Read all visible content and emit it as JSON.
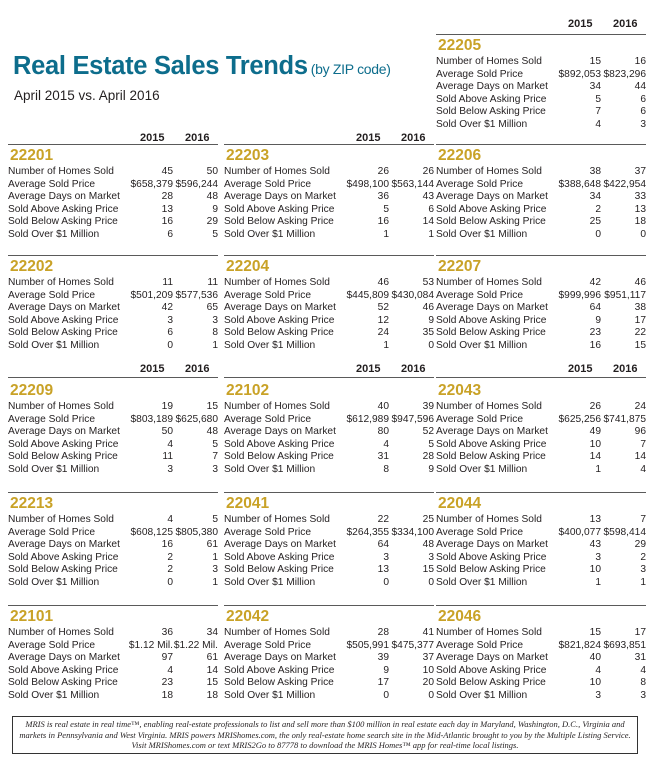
{
  "header": {
    "title": "Real Estate Sales Trends",
    "title_suffix": "(by ZIP code)",
    "subtitle": "April 2015 vs. April 2016"
  },
  "year_headers": {
    "y1": "2015",
    "y2": "2016"
  },
  "metric_labels": [
    "Number of Homes Sold",
    "Average Sold Price",
    "Average Days on Market",
    "Sold Above Asking Price",
    "Sold Below Asking Price",
    "Sold Over $1 Million"
  ],
  "zips": [
    {
      "zip": "22205",
      "values": [
        [
          "15",
          "16"
        ],
        [
          "$892,053",
          "$823,296"
        ],
        [
          "34",
          "44"
        ],
        [
          "5",
          "6"
        ],
        [
          "7",
          "6"
        ],
        [
          "4",
          "3"
        ]
      ]
    },
    {
      "zip": "22201",
      "values": [
        [
          "45",
          "50"
        ],
        [
          "$658,379",
          "$596,244"
        ],
        [
          "28",
          "48"
        ],
        [
          "13",
          "9"
        ],
        [
          "16",
          "29"
        ],
        [
          "6",
          "5"
        ]
      ]
    },
    {
      "zip": "22203",
      "values": [
        [
          "26",
          "26"
        ],
        [
          "$498,100",
          "$563,144"
        ],
        [
          "36",
          "43"
        ],
        [
          "5",
          "6"
        ],
        [
          "16",
          "14"
        ],
        [
          "1",
          "1"
        ]
      ]
    },
    {
      "zip": "22206",
      "values": [
        [
          "38",
          "37"
        ],
        [
          "$388,648",
          "$422,954"
        ],
        [
          "34",
          "33"
        ],
        [
          "2",
          "13"
        ],
        [
          "25",
          "18"
        ],
        [
          "0",
          "0"
        ]
      ]
    },
    {
      "zip": "22202",
      "values": [
        [
          "11",
          "11"
        ],
        [
          "$501,209",
          "$577,536"
        ],
        [
          "42",
          "65"
        ],
        [
          "3",
          "3"
        ],
        [
          "6",
          "8"
        ],
        [
          "0",
          "1"
        ]
      ]
    },
    {
      "zip": "22204",
      "values": [
        [
          "46",
          "53"
        ],
        [
          "$445,809",
          "$430,084"
        ],
        [
          "52",
          "46"
        ],
        [
          "12",
          "9"
        ],
        [
          "24",
          "35"
        ],
        [
          "1",
          "0"
        ]
      ]
    },
    {
      "zip": "22207",
      "values": [
        [
          "42",
          "46"
        ],
        [
          "$999,996",
          "$951,117"
        ],
        [
          "64",
          "38"
        ],
        [
          "9",
          "17"
        ],
        [
          "23",
          "22"
        ],
        [
          "16",
          "15"
        ]
      ]
    },
    {
      "zip": "22209",
      "values": [
        [
          "19",
          "15"
        ],
        [
          "$803,189",
          "$625,680"
        ],
        [
          "50",
          "48"
        ],
        [
          "4",
          "5"
        ],
        [
          "11",
          "7"
        ],
        [
          "3",
          "3"
        ]
      ]
    },
    {
      "zip": "22102",
      "values": [
        [
          "40",
          "39"
        ],
        [
          "$612,989",
          "$947,596"
        ],
        [
          "80",
          "52"
        ],
        [
          "4",
          "5"
        ],
        [
          "31",
          "28"
        ],
        [
          "8",
          "9"
        ]
      ]
    },
    {
      "zip": "22043",
      "values": [
        [
          "26",
          "24"
        ],
        [
          "$625,256",
          "$741,875"
        ],
        [
          "49",
          "96"
        ],
        [
          "10",
          "7"
        ],
        [
          "14",
          "14"
        ],
        [
          "1",
          "4"
        ]
      ]
    },
    {
      "zip": "22213",
      "values": [
        [
          "4",
          "5"
        ],
        [
          "$608,125",
          "$805,380"
        ],
        [
          "16",
          "61"
        ],
        [
          "2",
          "1"
        ],
        [
          "2",
          "3"
        ],
        [
          "0",
          "1"
        ]
      ]
    },
    {
      "zip": "22041",
      "values": [
        [
          "22",
          "25"
        ],
        [
          "$264,355",
          "$334,100"
        ],
        [
          "64",
          "48"
        ],
        [
          "3",
          "3"
        ],
        [
          "13",
          "15"
        ],
        [
          "0",
          "0"
        ]
      ]
    },
    {
      "zip": "22044",
      "values": [
        [
          "13",
          "7"
        ],
        [
          "$400,077",
          "$598,414"
        ],
        [
          "43",
          "29"
        ],
        [
          "3",
          "2"
        ],
        [
          "10",
          "3"
        ],
        [
          "1",
          "1"
        ]
      ]
    },
    {
      "zip": "22101",
      "values": [
        [
          "36",
          "34"
        ],
        [
          "$1.12 Mil.",
          "$1.22 Mil."
        ],
        [
          "97",
          "61"
        ],
        [
          "4",
          "14"
        ],
        [
          "23",
          "15"
        ],
        [
          "18",
          "18"
        ]
      ]
    },
    {
      "zip": "22042",
      "values": [
        [
          "28",
          "41"
        ],
        [
          "$505,991",
          "$475,377"
        ],
        [
          "39",
          "37"
        ],
        [
          "9",
          "10"
        ],
        [
          "17",
          "20"
        ],
        [
          "0",
          "0"
        ]
      ]
    },
    {
      "zip": "22046",
      "values": [
        [
          "15",
          "17"
        ],
        [
          "$821,824",
          "$693,851"
        ],
        [
          "40",
          "31"
        ],
        [
          "4",
          "4"
        ],
        [
          "10",
          "8"
        ],
        [
          "3",
          "3"
        ]
      ]
    }
  ],
  "footer": {
    "text": "MRIS is real estate in real time™, enabling real-estate professionals to list and sell more than $100 million in real estate each day in Maryland, Washington, D.C., Virginia and markets in Pennsylvania and West Virginia. MRIS powers MRIShomes.com, the only real-estate home search site in the Mid-Atlantic brought to you by the Multiple Listing Service. Visit MRIShomes.com or text MRIS2Go to 87778 to download the MRIS Homes™ app for real-time local listings."
  }
}
